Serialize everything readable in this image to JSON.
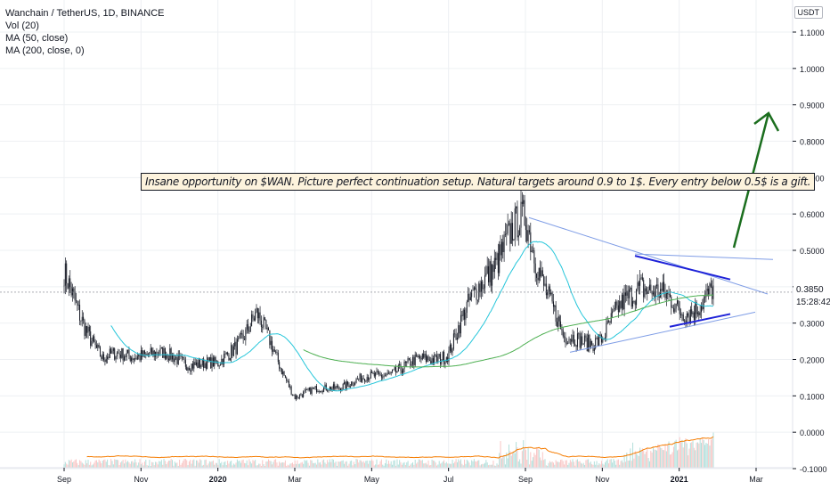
{
  "header": {
    "symbol": "Wanchain / TetherUS, 1D, BINANCE",
    "indicators": [
      "Vol (20)",
      "MA (50, close)",
      "MA (200, close, 0)"
    ],
    "currency": "USDT"
  },
  "annotation": {
    "text": "Insane opportunity on $WAN. Picture perfect continuation setup. Natural targets around 0.9 to 1$. Every entry below 0.5$ is a gift."
  },
  "price": {
    "last": "0.3850",
    "countdown": "15:28:42"
  },
  "colors": {
    "up": "#26a69a",
    "down": "#ef5350",
    "candle": "#131722",
    "ma50": "#26c6da",
    "ma200": "#4caf50",
    "volume_ma": "#f57c00",
    "trendline": "#1e22d8",
    "channel": "#7f9de6",
    "arrow": "#1b6e1e",
    "grid": "#eef0f3"
  },
  "chart_data": {
    "type": "candlestick",
    "y_axis": {
      "ticks": [
        "1.1000",
        "1.0000",
        "0.9000",
        "0.8000",
        "0.7000",
        "0.6000",
        "0.5000",
        "0.4000",
        "0.3000",
        "0.2000",
        "0.1000",
        "0.0000",
        "-0.1000"
      ],
      "range": [
        -0.1,
        1.18
      ]
    },
    "x_axis": {
      "ticks": [
        "Sep",
        "Nov",
        "2020",
        "Mar",
        "May",
        "Jul",
        "Sep",
        "Nov",
        "2021",
        "Mar"
      ]
    },
    "price_path": [
      {
        "t": "2019-09",
        "v": 0.42
      },
      {
        "t": "2019-10",
        "v": 0.2
      },
      {
        "t": "2019-11",
        "v": 0.22
      },
      {
        "t": "2020-01",
        "v": 0.18
      },
      {
        "t": "2020-02",
        "v": 0.32
      },
      {
        "t": "2020-03",
        "v": 0.1
      },
      {
        "t": "2020-05",
        "v": 0.15
      },
      {
        "t": "2020-07",
        "v": 0.22
      },
      {
        "t": "2020-08",
        "v": 0.45
      },
      {
        "t": "2020-09",
        "v": 0.58
      },
      {
        "t": "2020-10",
        "v": 0.25
      },
      {
        "t": "2020-11",
        "v": 0.26
      },
      {
        "t": "2020-12",
        "v": 0.42
      },
      {
        "t": "2021-01",
        "v": 0.33
      },
      {
        "t": "2021-02",
        "v": 0.385
      }
    ],
    "moving_averages": [
      {
        "name": "MA (50, close)"
      },
      {
        "name": "MA (200, close, 0)"
      }
    ],
    "volume": {
      "name": "Vol (20)"
    }
  }
}
